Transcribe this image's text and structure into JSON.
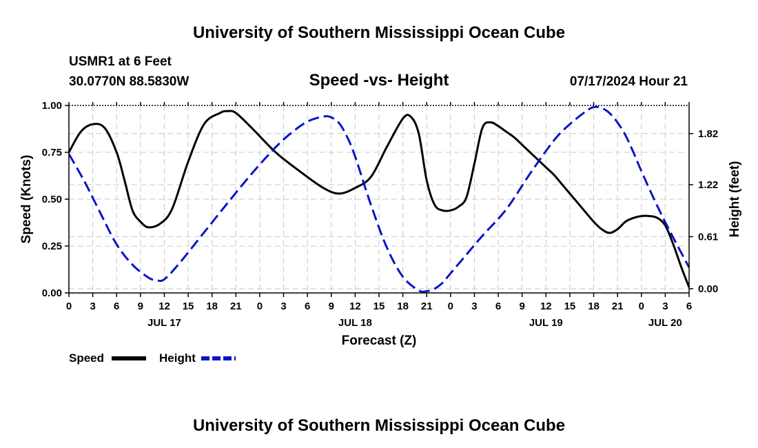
{
  "header": {
    "title": "University of Southern Mississippi Ocean Cube",
    "station": "USMR1 at 6 Feet",
    "location": "30.0770N  88.5830W",
    "subtitle": "Speed -vs- Height",
    "datetime": "07/17/2024 Hour 21"
  },
  "footer": {
    "title": "University of Southern Mississippi Ocean Cube"
  },
  "legend": {
    "speed": "Speed",
    "height": "Height"
  },
  "colors": {
    "speed": "#000000",
    "height": "#0a14c8",
    "grid": "#c8c8c8"
  },
  "chart_data": {
    "type": "line",
    "title": "Speed -vs- Height",
    "xlabel": "Forecast (Z)",
    "ylabel": "Speed (Knots)",
    "y2label": "Height (feet)",
    "xlim": [
      0,
      78
    ],
    "x_ticks": [
      0,
      3,
      6,
      9,
      12,
      15,
      18,
      21,
      24,
      27,
      30,
      33,
      36,
      39,
      42,
      45,
      48,
      51,
      54,
      57,
      60,
      63,
      66,
      69,
      72,
      75,
      78
    ],
    "x_tick_labels": [
      "0",
      "3",
      "6",
      "9",
      "12",
      "15",
      "18",
      "21",
      "0",
      "3",
      "6",
      "9",
      "12",
      "15",
      "18",
      "21",
      "0",
      "3",
      "6",
      "9",
      "12",
      "15",
      "18",
      "21",
      "0",
      "3",
      "6"
    ],
    "day_labels": [
      {
        "label": "JUL 17",
        "x": 12
      },
      {
        "label": "JUL 18",
        "x": 36
      },
      {
        "label": "JUL 19",
        "x": 60
      },
      {
        "label": "JUL 20",
        "x": 75
      }
    ],
    "ylim": [
      0,
      1.0
    ],
    "y_ticks": [
      0.0,
      0.25,
      0.5,
      0.75,
      1.0
    ],
    "y_tick_labels": [
      "0.00",
      "0.25",
      "0.50",
      "0.75",
      "1.00"
    ],
    "y2lim": [
      -0.05,
      2.15
    ],
    "y2_ticks": [
      0.0,
      0.61,
      1.22,
      1.82
    ],
    "y2_tick_labels": [
      "0.00",
      "0.61",
      "1.22",
      "1.82"
    ],
    "series": [
      {
        "name": "Speed",
        "axis": "left",
        "style": "solid",
        "x": [
          0,
          1.5,
          3,
          4.5,
          6,
          7,
          8,
          9,
          10,
          11.5,
          13,
          15,
          17,
          19,
          20,
          21,
          23,
          26,
          29,
          32,
          34,
          36,
          38,
          40,
          42,
          43,
          44,
          45,
          46,
          47,
          48,
          49,
          50,
          51,
          52,
          53,
          54,
          55,
          56,
          57,
          58,
          59,
          60,
          61,
          62,
          64,
          66,
          67,
          68,
          69,
          70,
          71,
          72,
          73,
          74,
          75,
          76,
          77,
          78
        ],
        "values": [
          0.75,
          0.86,
          0.9,
          0.88,
          0.75,
          0.6,
          0.44,
          0.38,
          0.35,
          0.37,
          0.45,
          0.7,
          0.9,
          0.96,
          0.97,
          0.96,
          0.88,
          0.75,
          0.65,
          0.56,
          0.53,
          0.56,
          0.62,
          0.78,
          0.93,
          0.94,
          0.85,
          0.6,
          0.47,
          0.44,
          0.44,
          0.46,
          0.51,
          0.69,
          0.88,
          0.91,
          0.89,
          0.86,
          0.83,
          0.79,
          0.75,
          0.71,
          0.67,
          0.63,
          0.58,
          0.48,
          0.38,
          0.34,
          0.32,
          0.34,
          0.38,
          0.4,
          0.41,
          0.41,
          0.4,
          0.36,
          0.26,
          0.14,
          0.03
        ]
      },
      {
        "name": "Height",
        "axis": "right",
        "style": "dashed",
        "x": [
          0,
          2,
          4,
          6,
          8,
          10,
          11,
          12,
          14,
          17,
          20,
          23,
          26,
          28,
          30,
          32,
          33,
          34,
          35,
          36,
          38,
          40,
          42,
          44,
          45,
          46,
          47,
          48,
          50,
          52,
          55,
          58,
          61,
          63,
          65,
          66,
          67,
          68,
          69,
          70,
          71,
          72,
          74,
          76,
          78
        ],
        "values": [
          1.58,
          1.25,
          0.88,
          0.52,
          0.28,
          0.13,
          0.1,
          0.11,
          0.31,
          0.66,
          1.01,
          1.35,
          1.66,
          1.83,
          1.96,
          2.02,
          2.01,
          1.94,
          1.78,
          1.55,
          0.98,
          0.48,
          0.14,
          -0.02,
          -0.03,
          0.0,
          0.07,
          0.18,
          0.4,
          0.62,
          0.93,
          1.35,
          1.74,
          1.93,
          2.08,
          2.13,
          2.12,
          2.06,
          1.95,
          1.8,
          1.6,
          1.38,
          0.97,
          0.6,
          0.25
        ]
      }
    ]
  }
}
